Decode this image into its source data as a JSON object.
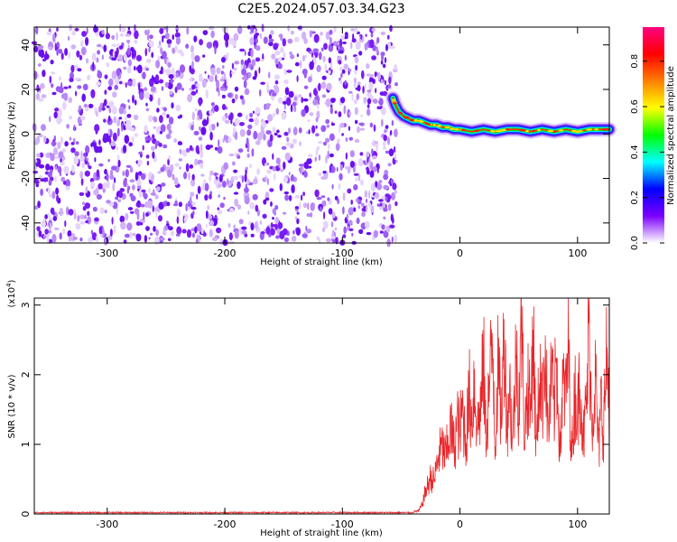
{
  "chart_data": [
    {
      "type": "heatmap",
      "title": "C2E5.2024.057.03.34.G23",
      "xlabel": "Height of straight line (km)",
      "ylabel": "Frequency (Hz)",
      "xlim": [
        -362,
        127
      ],
      "ylim": [
        -49,
        48
      ],
      "xticks": [
        -300,
        -200,
        -100,
        0,
        100
      ],
      "xtick_labels": [
        "-300",
        "-200",
        "-100",
        "0",
        "100"
      ],
      "yticks": [
        -40,
        -20,
        0,
        20,
        40
      ],
      "ytick_labels": [
        "-40",
        "-20",
        "0",
        "20",
        "40"
      ],
      "noise_region_x": [
        -362,
        -54
      ],
      "noise_color": "#7a1cf5",
      "signal_track": {
        "x": [
          -57,
          -55,
          -52,
          -48,
          -44,
          -40,
          -35,
          -30,
          -25,
          -20,
          -15,
          -10,
          -5,
          0,
          10,
          20,
          30,
          40,
          50,
          60,
          70,
          80,
          90,
          100,
          110,
          120,
          127
        ],
        "y": [
          16,
          13,
          10,
          8,
          7,
          6,
          6,
          5,
          4,
          4,
          3,
          3,
          2,
          2,
          1,
          2,
          1,
          2,
          2,
          1,
          2,
          1,
          2,
          1,
          2,
          2,
          2
        ]
      },
      "colorbar": {
        "label": "Normalized spectral amplitude",
        "range": [
          0,
          0.95
        ],
        "ticks": [
          0.0,
          0.2,
          0.4,
          0.6,
          0.8
        ],
        "tick_labels": [
          "0.0",
          "0.2",
          "0.4",
          "0.6",
          "0.8"
        ],
        "colors": [
          "#ffffff",
          "#7b00ff",
          "#0000ff",
          "#00ffff",
          "#00ff00",
          "#ffff00",
          "#ff8000",
          "#ff0000",
          "#ff0080"
        ]
      },
      "grid": false
    },
    {
      "type": "line",
      "xlabel": "Height of straight line (km)",
      "ylabel": "SNR (10 * v/v)",
      "multiplier": "(x10",
      "multiplier_exp": "4",
      "multiplier_close": ")",
      "xlim": [
        -362,
        127
      ],
      "ylim": [
        0,
        3.1
      ],
      "xticks": [
        -300,
        -200,
        -100,
        0,
        100
      ],
      "xtick_labels": [
        "-300",
        "-200",
        "-100",
        "0",
        "100"
      ],
      "yticks": [
        0,
        1,
        2,
        3
      ],
      "ytick_labels": [
        "0",
        "1",
        "2",
        "3"
      ],
      "series": [
        {
          "color": "#e8262a",
          "x": [
            -362,
            -300,
            -200,
            -100,
            -40,
            -35,
            -32,
            -30,
            -28,
            -25,
            -22,
            -20,
            -18,
            -15,
            -12,
            -10,
            -8,
            -5,
            -2,
            0,
            2,
            5,
            8,
            10,
            12,
            15,
            18,
            20,
            22,
            25,
            28,
            30,
            32,
            35,
            38,
            40,
            42,
            45,
            48,
            50,
            52,
            55,
            58,
            60,
            62,
            65,
            68,
            70,
            72,
            75,
            78,
            80,
            82,
            85,
            88,
            90,
            92,
            95,
            98,
            100,
            102,
            105,
            108,
            110,
            112,
            115,
            118,
            120,
            122,
            125,
            127
          ],
          "y": [
            0.02,
            0.02,
            0.02,
            0.02,
            0.03,
            0.05,
            0.15,
            0.3,
            0.4,
            0.55,
            0.5,
            0.7,
            0.9,
            1.0,
            0.85,
            1.1,
            1.3,
            1.0,
            1.4,
            1.2,
            1.6,
            1.1,
            1.8,
            1.4,
            2.0,
            1.3,
            1.7,
            2.3,
            1.2,
            1.9,
            2.6,
            1.0,
            2.2,
            1.5,
            2.8,
            1.3,
            2.0,
            1.1,
            2.5,
            1.6,
            3.1,
            1.2,
            2.0,
            1.4,
            2.9,
            0.9,
            2.3,
            1.6,
            2.7,
            1.2,
            2.1,
            1.5,
            2.4,
            1.0,
            2.0,
            1.7,
            2.6,
            0.9,
            1.9,
            1.4,
            2.2,
            1.1,
            1.8,
            3.05,
            1.3,
            2.1,
            0.9,
            1.7,
            1.3,
            2.4,
            1.6
          ]
        }
      ],
      "grid": false
    }
  ]
}
